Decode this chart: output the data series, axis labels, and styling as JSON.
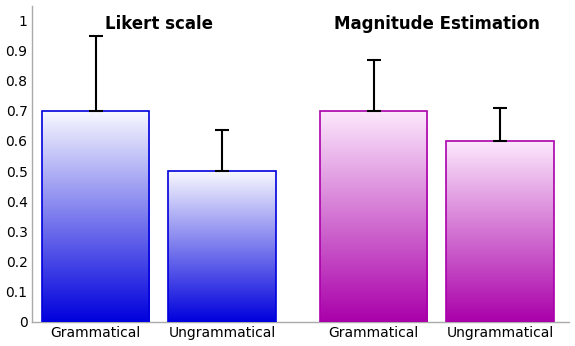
{
  "bars": [
    {
      "label": "Grammatical",
      "group": "Likert scale",
      "value": 0.7,
      "error": 0.25
    },
    {
      "label": "Ungrammatical",
      "group": "Likert scale",
      "value": 0.5,
      "error": 0.135
    },
    {
      "label": "Grammatical",
      "group": "Magnitude Estimation",
      "value": 0.7,
      "error": 0.17
    },
    {
      "label": "Ungrammatical",
      "group": "Magnitude Estimation",
      "value": 0.6,
      "error": 0.11
    }
  ],
  "blue_bottom": "#0000dd",
  "blue_top": "#f8f8ff",
  "purple_bottom": "#aa00aa",
  "purple_top": "#fce8fc",
  "group_labels": [
    "Likert scale",
    "Magnitude Estimation"
  ],
  "ylim": [
    0,
    1.0
  ],
  "yticks": [
    0,
    0.1,
    0.2,
    0.3,
    0.4,
    0.5,
    0.6,
    0.7,
    0.8,
    0.9,
    1
  ],
  "figsize": [
    5.75,
    3.46
  ],
  "dpi": 100,
  "background_color": "#ffffff",
  "error_color": "black",
  "error_linewidth": 1.5,
  "capsize": 5
}
